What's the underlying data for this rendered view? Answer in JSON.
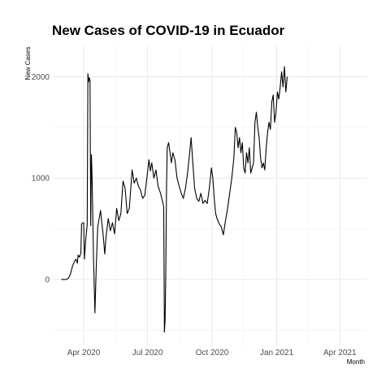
{
  "chart_data": {
    "type": "line",
    "title": "New Cases of COVID-19 in Ecuador",
    "xlabel": "Month",
    "ylabel": "New Cases",
    "x_ticks": [
      {
        "date": "2020-04-01",
        "label": "Apr 2020"
      },
      {
        "date": "2020-07-01",
        "label": "Jul 2020"
      },
      {
        "date": "2020-10-01",
        "label": "Oct 2020"
      },
      {
        "date": "2021-01-01",
        "label": "Jan 2021"
      },
      {
        "date": "2021-04-01",
        "label": "Apr 2021"
      }
    ],
    "y_ticks": [
      {
        "value": 0,
        "label": "0"
      },
      {
        "value": 1000,
        "label": "1000"
      },
      {
        "value": 2000,
        "label": "2000"
      }
    ],
    "xlim": [
      "2020-02-17",
      "2021-05-10"
    ],
    "ylim": [
      -650,
      2300
    ],
    "grid": true,
    "legend": "none",
    "line_color": "#000000",
    "series": [
      {
        "points": [
          [
            "2020-02-29",
            0
          ],
          [
            "2020-03-07",
            0
          ],
          [
            "2020-03-10",
            10
          ],
          [
            "2020-03-13",
            50
          ],
          [
            "2020-03-16",
            130
          ],
          [
            "2020-03-19",
            180
          ],
          [
            "2020-03-21",
            200
          ],
          [
            "2020-03-23",
            160
          ],
          [
            "2020-03-24",
            240
          ],
          [
            "2020-03-26",
            220
          ],
          [
            "2020-03-28",
            260
          ],
          [
            "2020-03-29",
            550
          ],
          [
            "2020-04-01",
            560
          ],
          [
            "2020-04-02",
            200
          ],
          [
            "2020-04-04",
            400
          ],
          [
            "2020-04-06",
            540
          ],
          [
            "2020-04-07",
            2030
          ],
          [
            "2020-04-08",
            1950
          ],
          [
            "2020-04-09",
            1990
          ],
          [
            "2020-04-10",
            1960
          ],
          [
            "2020-04-11",
            530
          ],
          [
            "2020-04-12",
            1230
          ],
          [
            "2020-04-13",
            1000
          ],
          [
            "2020-04-15",
            200
          ],
          [
            "2020-04-16",
            -60
          ],
          [
            "2020-04-17",
            -330
          ],
          [
            "2020-04-19",
            150
          ],
          [
            "2020-04-21",
            520
          ],
          [
            "2020-04-23",
            600
          ],
          [
            "2020-04-25",
            680
          ],
          [
            "2020-04-27",
            550
          ],
          [
            "2020-04-29",
            420
          ],
          [
            "2020-05-01",
            250
          ],
          [
            "2020-05-03",
            430
          ],
          [
            "2020-05-06",
            600
          ],
          [
            "2020-05-09",
            480
          ],
          [
            "2020-05-12",
            560
          ],
          [
            "2020-05-15",
            450
          ],
          [
            "2020-05-18",
            700
          ],
          [
            "2020-05-21",
            580
          ],
          [
            "2020-05-24",
            650
          ],
          [
            "2020-05-27",
            970
          ],
          [
            "2020-05-30",
            900
          ],
          [
            "2020-06-02",
            650
          ],
          [
            "2020-06-05",
            700
          ],
          [
            "2020-06-09",
            1080
          ],
          [
            "2020-06-12",
            950
          ],
          [
            "2020-06-15",
            1000
          ],
          [
            "2020-06-18",
            920
          ],
          [
            "2020-06-21",
            880
          ],
          [
            "2020-06-24",
            800
          ],
          [
            "2020-06-27",
            830
          ],
          [
            "2020-06-30",
            1000
          ],
          [
            "2020-07-03",
            1180
          ],
          [
            "2020-07-05",
            1070
          ],
          [
            "2020-07-07",
            1150
          ],
          [
            "2020-07-10",
            1000
          ],
          [
            "2020-07-13",
            1080
          ],
          [
            "2020-07-16",
            920
          ],
          [
            "2020-07-19",
            860
          ],
          [
            "2020-07-22",
            780
          ],
          [
            "2020-07-24",
            720
          ],
          [
            "2020-07-25",
            -520
          ],
          [
            "2020-07-26",
            -400
          ],
          [
            "2020-07-27",
            100
          ],
          [
            "2020-07-28",
            900
          ],
          [
            "2020-07-29",
            1300
          ],
          [
            "2020-07-31",
            1350
          ],
          [
            "2020-08-02",
            1250
          ],
          [
            "2020-08-04",
            1150
          ],
          [
            "2020-08-06",
            1250
          ],
          [
            "2020-08-09",
            1180
          ],
          [
            "2020-08-12",
            1000
          ],
          [
            "2020-08-15",
            920
          ],
          [
            "2020-08-18",
            850
          ],
          [
            "2020-08-21",
            800
          ],
          [
            "2020-08-24",
            900
          ],
          [
            "2020-08-27",
            1050
          ],
          [
            "2020-08-30",
            1250
          ],
          [
            "2020-09-01",
            1400
          ],
          [
            "2020-09-03",
            1200
          ],
          [
            "2020-09-06",
            900
          ],
          [
            "2020-09-09",
            800
          ],
          [
            "2020-09-12",
            770
          ],
          [
            "2020-09-15",
            850
          ],
          [
            "2020-09-18",
            750
          ],
          [
            "2020-09-21",
            780
          ],
          [
            "2020-09-24",
            750
          ],
          [
            "2020-09-27",
            900
          ],
          [
            "2020-09-30",
            1100
          ],
          [
            "2020-10-02",
            1000
          ],
          [
            "2020-10-04",
            800
          ],
          [
            "2020-10-06",
            650
          ],
          [
            "2020-10-08",
            600
          ],
          [
            "2020-10-11",
            550
          ],
          [
            "2020-10-14",
            520
          ],
          [
            "2020-10-17",
            440
          ],
          [
            "2020-10-20",
            580
          ],
          [
            "2020-10-23",
            700
          ],
          [
            "2020-10-26",
            850
          ],
          [
            "2020-10-29",
            1000
          ],
          [
            "2020-11-01",
            1200
          ],
          [
            "2020-11-03",
            1500
          ],
          [
            "2020-11-05",
            1450
          ],
          [
            "2020-11-07",
            1300
          ],
          [
            "2020-11-09",
            1400
          ],
          [
            "2020-11-11",
            1250
          ],
          [
            "2020-11-13",
            1350
          ],
          [
            "2020-11-15",
            1100
          ],
          [
            "2020-11-17",
            1050
          ],
          [
            "2020-11-19",
            1250
          ],
          [
            "2020-11-21",
            1150
          ],
          [
            "2020-11-23",
            1300
          ],
          [
            "2020-11-25",
            1050
          ],
          [
            "2020-11-27",
            1100
          ],
          [
            "2020-11-29",
            1150
          ],
          [
            "2020-12-01",
            1550
          ],
          [
            "2020-12-03",
            1650
          ],
          [
            "2020-12-05",
            1500
          ],
          [
            "2020-12-07",
            1400
          ],
          [
            "2020-12-09",
            1200
          ],
          [
            "2020-12-11",
            1100
          ],
          [
            "2020-12-13",
            1150
          ],
          [
            "2020-12-15",
            1080
          ],
          [
            "2020-12-17",
            1300
          ],
          [
            "2020-12-19",
            1450
          ],
          [
            "2020-12-21",
            1550
          ],
          [
            "2020-12-23",
            1480
          ],
          [
            "2020-12-25",
            1750
          ],
          [
            "2020-12-27",
            1820
          ],
          [
            "2020-12-29",
            1550
          ],
          [
            "2020-12-31",
            1650
          ],
          [
            "2021-01-02",
            1850
          ],
          [
            "2021-01-04",
            1780
          ],
          [
            "2021-01-06",
            1900
          ],
          [
            "2021-01-08",
            2050
          ],
          [
            "2021-01-10",
            1900
          ],
          [
            "2021-01-12",
            2100
          ],
          [
            "2021-01-14",
            1850
          ],
          [
            "2021-01-16",
            2000
          ]
        ]
      }
    ]
  }
}
